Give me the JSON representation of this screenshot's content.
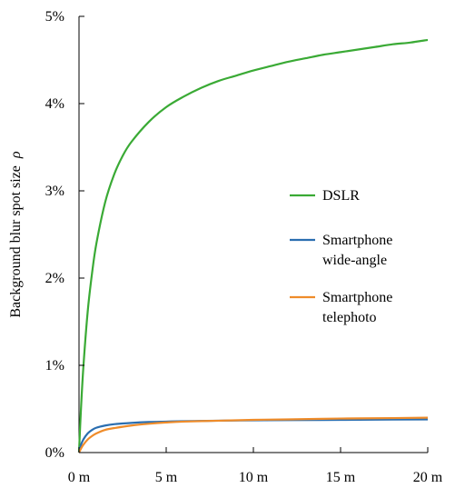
{
  "chart_data": {
    "type": "line",
    "ylabel": "Background blur spot size",
    "ylabel_symbol": "ρ",
    "xlim": [
      0,
      20
    ],
    "ylim": [
      0,
      5
    ],
    "x_ticks": [
      {
        "value": 0,
        "label": "0 m"
      },
      {
        "value": 5,
        "label": "5 m"
      },
      {
        "value": 10,
        "label": "10 m"
      },
      {
        "value": 15,
        "label": "15 m"
      },
      {
        "value": 20,
        "label": "20 m"
      }
    ],
    "y_ticks": [
      {
        "value": 0,
        "label": "0%"
      },
      {
        "value": 1,
        "label": "1%"
      },
      {
        "value": 2,
        "label": "2%"
      },
      {
        "value": 3,
        "label": "3%"
      },
      {
        "value": 4,
        "label": "4%"
      },
      {
        "value": 5,
        "label": "5%"
      }
    ],
    "grid": false,
    "legend_position": "center-right",
    "series": [
      {
        "name": "DSLR",
        "label_lines": [
          "DSLR"
        ],
        "color": "#3aaa35",
        "x": [
          0,
          0.1,
          0.25,
          0.5,
          0.75,
          1,
          1.5,
          2,
          2.5,
          3,
          4,
          5,
          6,
          7,
          8,
          9,
          10,
          11,
          12,
          13,
          14,
          15,
          16,
          17,
          18,
          19,
          20
        ],
        "y": [
          0,
          0.45,
          0.98,
          1.62,
          2.06,
          2.4,
          2.87,
          3.18,
          3.4,
          3.56,
          3.79,
          3.96,
          4.08,
          4.18,
          4.26,
          4.32,
          4.38,
          4.43,
          4.48,
          4.52,
          4.56,
          4.59,
          4.62,
          4.65,
          4.68,
          4.7,
          4.73
        ]
      },
      {
        "name": "Smartphone wide-angle",
        "label_lines": [
          "Smartphone",
          "wide-angle"
        ],
        "color": "#2a6eb0",
        "x": [
          0,
          0.1,
          0.25,
          0.5,
          0.75,
          1,
          1.5,
          2,
          3,
          4,
          5,
          6,
          8,
          10,
          12,
          15,
          18,
          20
        ],
        "y": [
          0,
          0.08,
          0.15,
          0.22,
          0.26,
          0.285,
          0.31,
          0.325,
          0.34,
          0.35,
          0.355,
          0.36,
          0.365,
          0.37,
          0.372,
          0.375,
          0.378,
          0.38
        ]
      },
      {
        "name": "Smartphone telephoto",
        "label_lines": [
          "Smartphone",
          "telephoto"
        ],
        "color": "#ef8c2a",
        "x": [
          0,
          0.1,
          0.25,
          0.5,
          0.75,
          1,
          1.5,
          2,
          3,
          4,
          5,
          6,
          8,
          10,
          12,
          15,
          18,
          20
        ],
        "y": [
          0,
          0.04,
          0.09,
          0.15,
          0.19,
          0.22,
          0.26,
          0.28,
          0.31,
          0.33,
          0.345,
          0.355,
          0.365,
          0.375,
          0.38,
          0.39,
          0.395,
          0.4
        ]
      }
    ]
  }
}
